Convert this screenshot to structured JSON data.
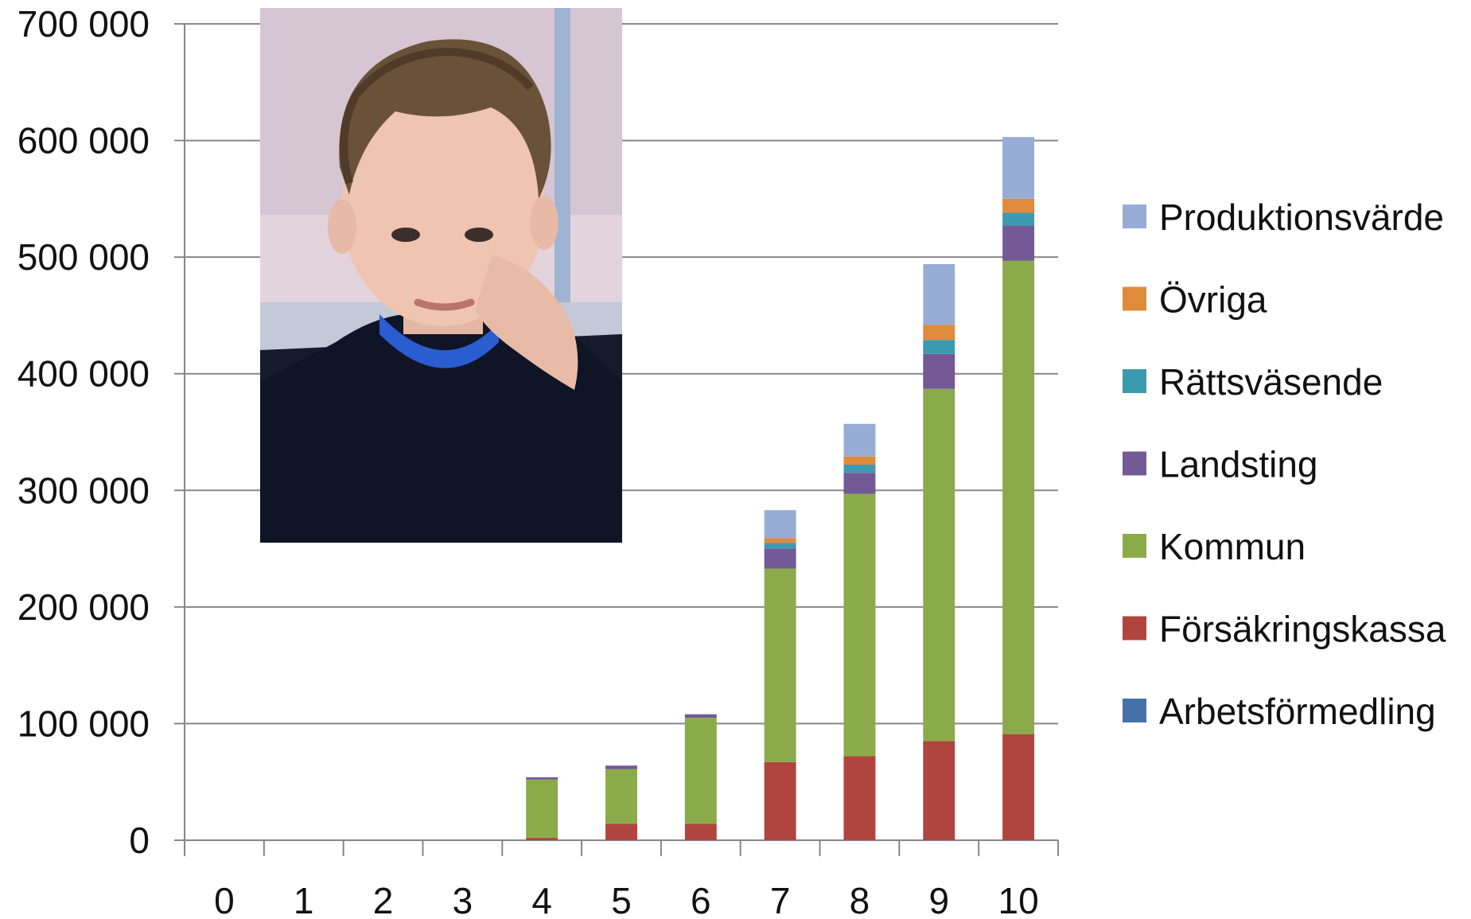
{
  "chart_data": {
    "type": "bar",
    "stacked": true,
    "categories": [
      "0",
      "1",
      "2",
      "3",
      "4",
      "5",
      "6",
      "7",
      "8",
      "9",
      "10"
    ],
    "ylim": [
      0,
      700000
    ],
    "yticks": [
      0,
      100000,
      200000,
      300000,
      400000,
      500000,
      600000,
      700000
    ],
    "ytick_labels": [
      "0",
      "100 000",
      "200 000",
      "300 000",
      "400 000",
      "500 000",
      "600 000",
      "700 000"
    ],
    "grid": true,
    "legend_position": "right",
    "series": [
      {
        "name": "Arbetsförmedling",
        "color": "#4472A8",
        "values": [
          0,
          0,
          0,
          0,
          0,
          0,
          0,
          0,
          0,
          0,
          0
        ]
      },
      {
        "name": "Försäkringskassa",
        "color": "#B0443E",
        "values": [
          0,
          0,
          0,
          0,
          2000,
          14000,
          14000,
          67000,
          72000,
          85000,
          91000
        ]
      },
      {
        "name": "Kommun",
        "color": "#8BAA4A",
        "values": [
          0,
          0,
          0,
          0,
          50000,
          47000,
          91000,
          166000,
          225000,
          302000,
          406000
        ]
      },
      {
        "name": "Landsting",
        "color": "#735996",
        "values": [
          0,
          0,
          0,
          0,
          2000,
          3000,
          3000,
          17000,
          18000,
          30000,
          30000
        ]
      },
      {
        "name": "Rättsväsende",
        "color": "#3C9AB0",
        "values": [
          0,
          0,
          0,
          0,
          0,
          0,
          0,
          5000,
          7000,
          12000,
          11000
        ]
      },
      {
        "name": "Övriga",
        "color": "#E08A3C",
        "values": [
          0,
          0,
          0,
          0,
          0,
          0,
          0,
          4000,
          7000,
          13000,
          12000
        ]
      },
      {
        "name": "Produktionsvärde",
        "color": "#97ADD5",
        "values": [
          0,
          0,
          0,
          0,
          0,
          0,
          0,
          24000,
          28000,
          52000,
          53000
        ]
      }
    ],
    "legend_order": [
      "Produktionsvärde",
      "Övriga",
      "Rättsväsende",
      "Landsting",
      "Kommun",
      "Försäkringskassa",
      "Arbetsförmedling"
    ]
  }
}
